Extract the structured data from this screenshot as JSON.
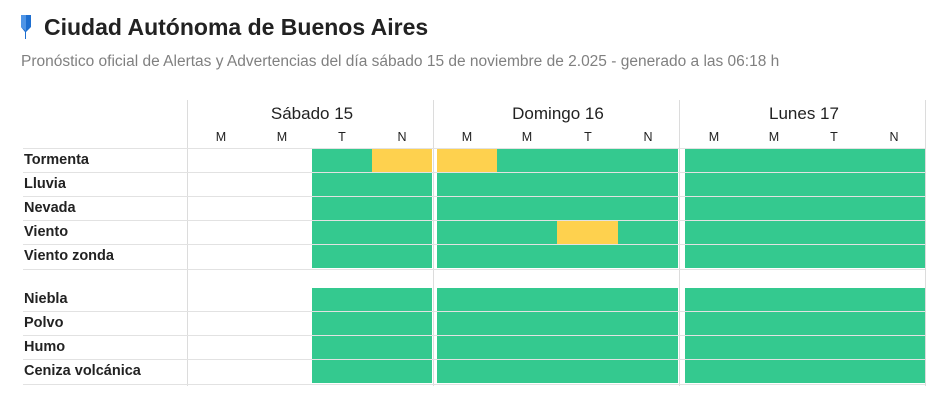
{
  "header": {
    "title": "Ciudad Autónoma de Buenos Aires",
    "subtitle": "Pronóstico oficial de Alertas y Advertencias del día sábado 15 de noviembre de 2.025 - generado a las 06:18 h",
    "icon": "location-pin-icon"
  },
  "colors": {
    "no_alert": "#34c98f",
    "yellow_alert": "#fed14e"
  },
  "days": [
    {
      "label": "Sábado 15",
      "periods": [
        "M",
        "M",
        "T",
        "N"
      ]
    },
    {
      "label": "Domingo 16",
      "periods": [
        "M",
        "M",
        "T",
        "N"
      ]
    },
    {
      "label": "Lunes 17",
      "periods": [
        "M",
        "M",
        "T",
        "N"
      ]
    }
  ],
  "phenomena": [
    {
      "label": "Tormenta",
      "levels": [
        "",
        "",
        "green",
        "yellow",
        "yellow",
        "green",
        "green",
        "green",
        "green",
        "green",
        "green",
        "green"
      ]
    },
    {
      "label": "Lluvia",
      "levels": [
        "",
        "",
        "green",
        "green",
        "green",
        "green",
        "green",
        "green",
        "green",
        "green",
        "green",
        "green"
      ]
    },
    {
      "label": "Nevada",
      "levels": [
        "",
        "",
        "green",
        "green",
        "green",
        "green",
        "green",
        "green",
        "green",
        "green",
        "green",
        "green"
      ]
    },
    {
      "label": "Viento",
      "levels": [
        "",
        "",
        "green",
        "green",
        "green",
        "green",
        "yellow",
        "green",
        "green",
        "green",
        "green",
        "green"
      ]
    },
    {
      "label": "Viento zonda",
      "levels": [
        "",
        "",
        "green",
        "green",
        "green",
        "green",
        "green",
        "green",
        "green",
        "green",
        "green",
        "green"
      ]
    },
    {
      "label": "Niebla",
      "levels": [
        "",
        "",
        "green",
        "green",
        "green",
        "green",
        "green",
        "green",
        "green",
        "green",
        "green",
        "green"
      ]
    },
    {
      "label": "Polvo",
      "levels": [
        "",
        "",
        "green",
        "green",
        "green",
        "green",
        "green",
        "green",
        "green",
        "green",
        "green",
        "green"
      ]
    },
    {
      "label": "Humo",
      "levels": [
        "",
        "",
        "green",
        "green",
        "green",
        "green",
        "green",
        "green",
        "green",
        "green",
        "green",
        "green"
      ]
    },
    {
      "label": "Ceniza volcánica",
      "levels": [
        "",
        "",
        "green",
        "green",
        "green",
        "green",
        "green",
        "green",
        "green",
        "green",
        "green",
        "green"
      ]
    }
  ]
}
